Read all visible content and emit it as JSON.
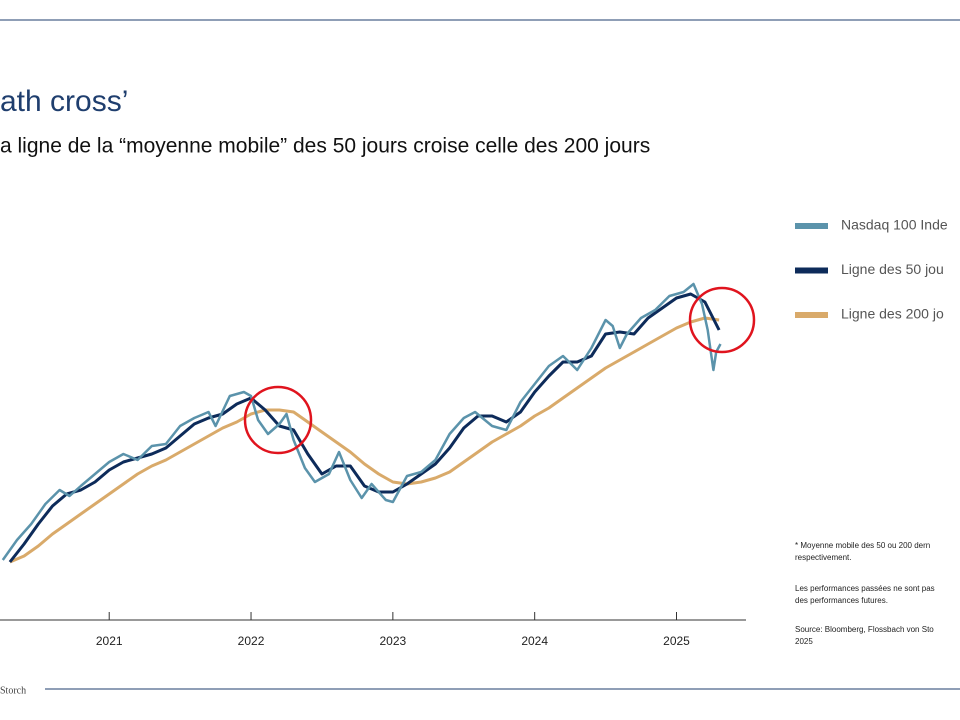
{
  "chart_data": {
    "type": "line",
    "title": "ath cross’",
    "subtitle": "a ligne de la “moyenne mobile” des 50 jours croise celle des 200 jours",
    "xlim": [
      2020.23,
      2025.49
    ],
    "xticks": [
      2021,
      2022,
      2023,
      2024,
      2025
    ],
    "ylim": [
      6000,
      26000
    ],
    "series": [
      {
        "name": "Nasdaq 100 Inde",
        "color": "#5b93ab",
        "x": [
          2020.25,
          2020.35,
          2020.45,
          2020.55,
          2020.65,
          2020.72,
          2020.8,
          2020.9,
          2021.0,
          2021.1,
          2021.2,
          2021.3,
          2021.4,
          2021.5,
          2021.6,
          2021.7,
          2021.75,
          2021.85,
          2021.95,
          2022.0,
          2022.05,
          2022.12,
          2022.2,
          2022.25,
          2022.3,
          2022.38,
          2022.45,
          2022.55,
          2022.62,
          2022.7,
          2022.78,
          2022.85,
          2022.95,
          2023.0,
          2023.1,
          2023.2,
          2023.3,
          2023.4,
          2023.5,
          2023.58,
          2023.7,
          2023.8,
          2023.9,
          2024.0,
          2024.1,
          2024.2,
          2024.3,
          2024.4,
          2024.5,
          2024.55,
          2024.6,
          2024.65,
          2024.75,
          2024.85,
          2024.95,
          2025.05,
          2025.12,
          2025.18,
          2025.22,
          2025.26,
          2025.28,
          2025.31
        ],
        "values": [
          8000,
          9000,
          9800,
          10800,
          11500,
          11200,
          11700,
          12300,
          12900,
          13300,
          13000,
          13700,
          13800,
          14700,
          15100,
          15400,
          14700,
          16200,
          16400,
          16200,
          15000,
          14300,
          14800,
          15300,
          14000,
          12600,
          11900,
          12300,
          13400,
          12000,
          11100,
          11800,
          11000,
          10900,
          12200,
          12400,
          13000,
          14300,
          15100,
          15400,
          14700,
          14500,
          15900,
          16800,
          17700,
          18200,
          17500,
          18600,
          20000,
          19700,
          18600,
          19300,
          20100,
          20500,
          21200,
          21400,
          21800,
          20800,
          19500,
          17500,
          18400,
          18800
        ]
      },
      {
        "name": "Ligne des 50 jou",
        "color": "#0d2b5a",
        "x": [
          2020.3,
          2020.4,
          2020.5,
          2020.6,
          2020.7,
          2020.8,
          2020.9,
          2021.0,
          2021.1,
          2021.2,
          2021.3,
          2021.4,
          2021.5,
          2021.6,
          2021.7,
          2021.8,
          2021.9,
          2022.0,
          2022.1,
          2022.2,
          2022.3,
          2022.4,
          2022.5,
          2022.6,
          2022.7,
          2022.8,
          2022.9,
          2023.0,
          2023.1,
          2023.2,
          2023.3,
          2023.4,
          2023.5,
          2023.6,
          2023.7,
          2023.8,
          2023.9,
          2024.0,
          2024.1,
          2024.2,
          2024.3,
          2024.4,
          2024.5,
          2024.6,
          2024.7,
          2024.8,
          2024.9,
          2025.0,
          2025.1,
          2025.2,
          2025.3
        ],
        "values": [
          7900,
          8800,
          9800,
          10700,
          11300,
          11500,
          11900,
          12500,
          12900,
          13100,
          13300,
          13600,
          14200,
          14800,
          15100,
          15300,
          15800,
          16100,
          15500,
          14700,
          14500,
          13300,
          12300,
          12700,
          12700,
          11700,
          11400,
          11400,
          11800,
          12300,
          12800,
          13600,
          14600,
          15200,
          15200,
          14900,
          15400,
          16400,
          17200,
          17900,
          17900,
          18200,
          19300,
          19400,
          19300,
          20100,
          20600,
          21100,
          21300,
          20900,
          19500
        ]
      },
      {
        "name": "Ligne des 200 jo",
        "color": "#d9aa6a",
        "x": [
          2020.3,
          2020.4,
          2020.5,
          2020.6,
          2020.7,
          2020.8,
          2020.9,
          2021.0,
          2021.1,
          2021.2,
          2021.3,
          2021.4,
          2021.5,
          2021.6,
          2021.7,
          2021.8,
          2021.9,
          2022.0,
          2022.1,
          2022.2,
          2022.3,
          2022.4,
          2022.5,
          2022.6,
          2022.7,
          2022.8,
          2022.9,
          2023.0,
          2023.1,
          2023.2,
          2023.3,
          2023.4,
          2023.5,
          2023.6,
          2023.7,
          2023.8,
          2023.9,
          2024.0,
          2024.1,
          2024.2,
          2024.3,
          2024.4,
          2024.5,
          2024.6,
          2024.7,
          2024.8,
          2024.9,
          2025.0,
          2025.1,
          2025.2,
          2025.3
        ],
        "values": [
          7900,
          8200,
          8700,
          9300,
          9800,
          10300,
          10800,
          11300,
          11800,
          12300,
          12700,
          13000,
          13400,
          13800,
          14200,
          14600,
          14900,
          15300,
          15500,
          15500,
          15400,
          14900,
          14400,
          13900,
          13400,
          12800,
          12300,
          11900,
          11800,
          11900,
          12100,
          12400,
          12900,
          13400,
          13900,
          14300,
          14700,
          15200,
          15600,
          16100,
          16600,
          17100,
          17600,
          18000,
          18400,
          18800,
          19200,
          19600,
          19900,
          20100,
          20000
        ]
      }
    ],
    "notes": [
      [
        "* Moyenne mobile des 50 ou 200 dern",
        "respectivement."
      ],
      [
        "Les performances passées ne sont pas",
        "des performances futures."
      ],
      [
        "Source: Bloomberg, Flossbach von Sto",
        "2025"
      ]
    ],
    "footer": "Storch"
  }
}
